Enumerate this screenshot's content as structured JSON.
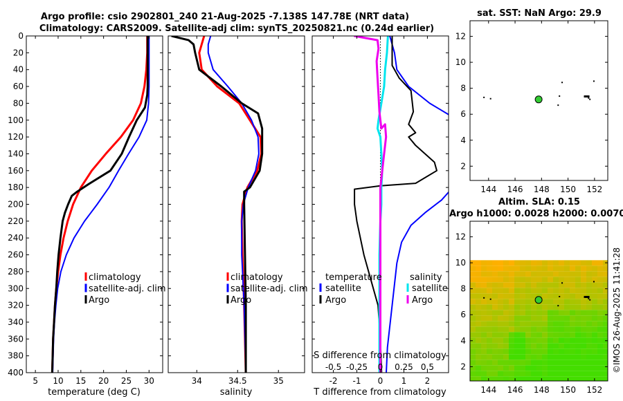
{
  "title": {
    "line1": "Argo profile: csio 2902801_240 21-Aug-2025 -7.138S 147.78E (NRT data)",
    "line2": "Climatology: CARS2009. Satellite-adj clim: synTS_20250821.nc (0.24d earlier)"
  },
  "colors": {
    "climatology": "#ff0000",
    "satellite": "#0000ff",
    "argo": "#000000",
    "satellite_diff_salinity": "#00e5ee",
    "argo_diff_salinity": "#ee00ee",
    "sla_field_low": "#44dd00",
    "sla_field_high": "#ffb000",
    "float_marker": "#33cc33"
  },
  "timestamp": "©IMOS 26-Aug-2025 11:41:28",
  "chart_data": [
    {
      "id": "temperature",
      "type": "line",
      "xlabel": "temperature (deg C)",
      "ylabel": "",
      "xlim": [
        3,
        33
      ],
      "ylim": [
        400,
        0
      ],
      "xticks": [
        "5",
        "10",
        "15",
        "20",
        "25",
        "30"
      ],
      "xtick_values": [
        5,
        10,
        15,
        20,
        25,
        30
      ],
      "yticks": [
        "0",
        "20",
        "40",
        "60",
        "80",
        "100",
        "120",
        "140",
        "160",
        "180",
        "200",
        "220",
        "240",
        "260",
        "280",
        "300",
        "320",
        "340",
        "360",
        "380",
        "400"
      ],
      "ytick_values": [
        0,
        20,
        40,
        60,
        80,
        100,
        120,
        140,
        160,
        180,
        200,
        220,
        240,
        260,
        280,
        300,
        320,
        340,
        360,
        380,
        400
      ],
      "legend": [
        "climatology",
        "satellite-adj. clim",
        "Argo"
      ],
      "series": [
        {
          "name": "climatology",
          "color": "#ff0000",
          "width": 3,
          "points": [
            [
              29.6,
              0
            ],
            [
              29.6,
              20
            ],
            [
              29.4,
              40
            ],
            [
              29.0,
              60
            ],
            [
              28.2,
              80
            ],
            [
              26.5,
              100
            ],
            [
              23.8,
              120
            ],
            [
              20.5,
              140
            ],
            [
              17.4,
              160
            ],
            [
              15.0,
              180
            ],
            [
              13.3,
              200
            ],
            [
              12.1,
              220
            ],
            [
              11.2,
              240
            ],
            [
              10.5,
              260
            ],
            [
              10.0,
              280
            ],
            [
              9.6,
              300
            ],
            [
              9.3,
              320
            ],
            [
              9.1,
              340
            ],
            [
              8.9,
              360
            ],
            [
              8.8,
              380
            ],
            [
              8.7,
              400
            ]
          ]
        },
        {
          "name": "satellite-adj. clim",
          "color": "#0000ff",
          "width": 2,
          "points": [
            [
              30.0,
              0
            ],
            [
              30.0,
              20
            ],
            [
              30.0,
              40
            ],
            [
              30.0,
              60
            ],
            [
              29.9,
              80
            ],
            [
              29.5,
              100
            ],
            [
              27.8,
              120
            ],
            [
              25.5,
              140
            ],
            [
              23.3,
              160
            ],
            [
              21.2,
              180
            ],
            [
              18.6,
              200
            ],
            [
              15.8,
              220
            ],
            [
              13.5,
              240
            ],
            [
              11.8,
              260
            ],
            [
              10.6,
              280
            ],
            [
              9.9,
              300
            ],
            [
              9.5,
              320
            ],
            [
              9.2,
              340
            ],
            [
              9.0,
              360
            ],
            [
              8.9,
              380
            ],
            [
              8.8,
              400
            ]
          ]
        },
        {
          "name": "Argo",
          "color": "#000000",
          "width": 3,
          "points": [
            [
              29.7,
              0
            ],
            [
              29.7,
              20
            ],
            [
              29.7,
              40
            ],
            [
              29.7,
              60
            ],
            [
              29.6,
              70
            ],
            [
              29.1,
              85
            ],
            [
              27.3,
              100
            ],
            [
              25.6,
              120
            ],
            [
              24.0,
              140
            ],
            [
              21.5,
              160
            ],
            [
              17.0,
              175
            ],
            [
              14.2,
              185
            ],
            [
              13.0,
              190
            ],
            [
              12.2,
              200
            ],
            [
              11.5,
              210
            ],
            [
              11.0,
              220
            ],
            [
              10.5,
              240
            ],
            [
              10.1,
              260
            ],
            [
              9.8,
              280
            ],
            [
              9.6,
              300
            ],
            [
              9.3,
              320
            ],
            [
              9.1,
              340
            ],
            [
              8.9,
              360
            ],
            [
              8.8,
              380
            ],
            [
              8.7,
              400
            ]
          ]
        }
      ]
    },
    {
      "id": "salinity",
      "type": "line",
      "xlabel": "salinity",
      "xlim": [
        33.65,
        35.32
      ],
      "ylim": [
        400,
        0
      ],
      "xticks": [
        "34",
        "34.5",
        "35"
      ],
      "xtick_values": [
        34,
        34.5,
        35
      ],
      "legend": [
        "climatology",
        "satellite-adj. clim",
        "Argo"
      ],
      "series": [
        {
          "name": "climatology",
          "color": "#ff0000",
          "width": 3,
          "points": [
            [
              34.09,
              0
            ],
            [
              34.03,
              20
            ],
            [
              34.06,
              40
            ],
            [
              34.25,
              60
            ],
            [
              34.52,
              80
            ],
            [
              34.65,
              100
            ],
            [
              34.78,
              120
            ],
            [
              34.79,
              140
            ],
            [
              34.74,
              160
            ],
            [
              34.62,
              180
            ],
            [
              34.56,
              200
            ],
            [
              34.55,
              220
            ],
            [
              34.56,
              260
            ],
            [
              34.58,
              320
            ],
            [
              34.6,
              400
            ]
          ]
        },
        {
          "name": "satellite-adj. clim",
          "color": "#0000ff",
          "width": 2,
          "points": [
            [
              34.17,
              0
            ],
            [
              34.14,
              10
            ],
            [
              34.14,
              20
            ],
            [
              34.2,
              40
            ],
            [
              34.38,
              60
            ],
            [
              34.55,
              80
            ],
            [
              34.67,
              100
            ],
            [
              34.75,
              120
            ],
            [
              34.76,
              140
            ],
            [
              34.72,
              160
            ],
            [
              34.63,
              180
            ],
            [
              34.57,
              200
            ],
            [
              34.55,
              220
            ],
            [
              34.55,
              260
            ],
            [
              34.58,
              320
            ],
            [
              34.6,
              400
            ]
          ]
        },
        {
          "name": "Argo",
          "color": "#000000",
          "width": 3,
          "points": [
            [
              33.69,
              0
            ],
            [
              33.9,
              5
            ],
            [
              33.96,
              10
            ],
            [
              33.98,
              20
            ],
            [
              34.03,
              40
            ],
            [
              34.3,
              60
            ],
            [
              34.55,
              80
            ],
            [
              34.75,
              92
            ],
            [
              34.8,
              110
            ],
            [
              34.8,
              140
            ],
            [
              34.77,
              160
            ],
            [
              34.65,
              180
            ],
            [
              34.58,
              185
            ],
            [
              34.58,
              200
            ],
            [
              34.59,
              260
            ],
            [
              34.6,
              320
            ],
            [
              34.6,
              400
            ]
          ]
        }
      ]
    },
    {
      "id": "differences",
      "type": "line",
      "xlabel": "T difference from climatology",
      "xlabel2": "S difference from climatology",
      "xlim": [
        -2.9,
        2.9
      ],
      "ylim": [
        400,
        0
      ],
      "xticks": [
        "-2",
        "-1",
        "0",
        "1",
        "2"
      ],
      "xtick_values": [
        -2,
        -1,
        0,
        1,
        2
      ],
      "sticks": [
        "-0.5",
        "-0.25",
        "0",
        "0.25",
        "0.5"
      ],
      "stick_values": [
        -0.5,
        -0.25,
        0,
        0.25,
        0.5
      ],
      "s_xlim": [
        -0.725,
        0.725
      ],
      "legend": {
        "temperature_title": "temperature",
        "salinity_title": "salinity",
        "temperature": [
          "satellite",
          "Argo"
        ],
        "salinity": [
          "satellite",
          "Argo"
        ]
      },
      "series": [
        {
          "name": "T satellite",
          "axis": "T",
          "color": "#0000ff",
          "width": 2,
          "points": [
            [
              0.4,
              0
            ],
            [
              0.6,
              20
            ],
            [
              0.7,
              40
            ],
            [
              1.2,
              60
            ],
            [
              2.1,
              80
            ],
            [
              3.0,
              95
            ],
            [
              3.4,
              110
            ]
          ]
        },
        {
          "name": "T satellite",
          "axis": "T",
          "color": "#0000ff",
          "width": 2,
          "points": [
            [
              3.4,
              170
            ],
            [
              2.6,
              195
            ],
            [
              1.9,
              210
            ],
            [
              1.3,
              225
            ],
            [
              0.9,
              245
            ],
            [
              0.7,
              270
            ],
            [
              0.5,
              320
            ],
            [
              0.3,
              370
            ],
            [
              0.25,
              400
            ]
          ]
        },
        {
          "name": "T Argo",
          "axis": "T",
          "color": "#000000",
          "width": 2,
          "points": [
            [
              0.5,
              0
            ],
            [
              0.5,
              15
            ],
            [
              0.5,
              25
            ],
            [
              0.5,
              35
            ],
            [
              0.8,
              50
            ],
            [
              1.3,
              65
            ],
            [
              1.4,
              90
            ],
            [
              1.2,
              105
            ],
            [
              1.5,
              115
            ],
            [
              1.2,
              120
            ],
            [
              1.5,
              130
            ],
            [
              2.3,
              150
            ],
            [
              2.4,
              160
            ],
            [
              1.5,
              175
            ],
            [
              0.0,
              178
            ],
            [
              -1.1,
              182
            ],
            [
              -1.1,
              200
            ],
            [
              -1.0,
              220
            ],
            [
              -0.7,
              260
            ],
            [
              -0.3,
              300
            ],
            [
              -0.1,
              320
            ],
            [
              0.0,
              360
            ],
            [
              0.05,
              400
            ]
          ]
        },
        {
          "name": "S satellite",
          "axis": "S",
          "color": "#00e5ee",
          "width": 3,
          "points": [
            [
              0.08,
              0
            ],
            [
              0.07,
              20
            ],
            [
              0.05,
              40
            ],
            [
              0.04,
              60
            ],
            [
              0.01,
              80
            ],
            [
              -0.02,
              100
            ],
            [
              -0.03,
              110
            ],
            [
              0.0,
              120
            ],
            [
              0.01,
              140
            ],
            [
              0.02,
              160
            ],
            [
              0.01,
              180
            ],
            [
              0.01,
              200
            ],
            [
              0.0,
              220
            ],
            [
              -0.01,
              260
            ],
            [
              -0.01,
              300
            ],
            [
              -0.01,
              350
            ],
            [
              -0.01,
              400
            ]
          ]
        },
        {
          "name": "S Argo",
          "axis": "S",
          "color": "#ee00ee",
          "width": 3,
          "points": [
            [
              -0.28,
              0
            ],
            [
              -0.03,
              5
            ],
            [
              -0.02,
              15
            ],
            [
              -0.04,
              30
            ],
            [
              -0.03,
              50
            ],
            [
              -0.02,
              70
            ],
            [
              -0.01,
              90
            ],
            [
              0.01,
              110
            ],
            [
              0.05,
              105
            ],
            [
              0.06,
              120
            ],
            [
              0.04,
              140
            ],
            [
              0.02,
              160
            ],
            [
              0.0,
              180
            ],
            [
              0.0,
              200
            ],
            [
              0.0,
              220
            ],
            [
              0.0,
              260
            ],
            [
              0.0,
              320
            ],
            [
              0.0,
              400
            ]
          ]
        }
      ]
    },
    {
      "id": "sst_map",
      "type": "scatter",
      "title": "sat. SST: NaN Argo: 29.9",
      "xlim": [
        142.6,
        153.0
      ],
      "ylim": [
        0.9,
        13.2
      ],
      "xticks": [
        "144",
        "146",
        "148",
        "150",
        "152"
      ],
      "xtick_values": [
        144,
        146,
        148,
        150,
        152
      ],
      "yticks": [
        "2",
        "4",
        "6",
        "8",
        "10",
        "12"
      ],
      "ytick_values": [
        2,
        4,
        6,
        8,
        10,
        12
      ],
      "float_position": [
        147.78,
        7.14
      ]
    },
    {
      "id": "sla_map",
      "type": "heatmap",
      "title1": "Altim. SLA: 0.15",
      "title2": "Argo h1000: 0.0028 h2000: 0.0070",
      "xlim": [
        142.6,
        153.0
      ],
      "ylim": [
        0.9,
        13.2
      ],
      "xticks": [
        "144",
        "146",
        "148",
        "150",
        "152"
      ],
      "xtick_values": [
        144,
        146,
        148,
        150,
        152
      ],
      "yticks": [
        "2",
        "4",
        "6",
        "8",
        "10",
        "12"
      ],
      "ytick_values": [
        2,
        4,
        6,
        8,
        10,
        12
      ],
      "field_lat_top": 10.2,
      "float_position": [
        147.78,
        7.14
      ]
    }
  ]
}
